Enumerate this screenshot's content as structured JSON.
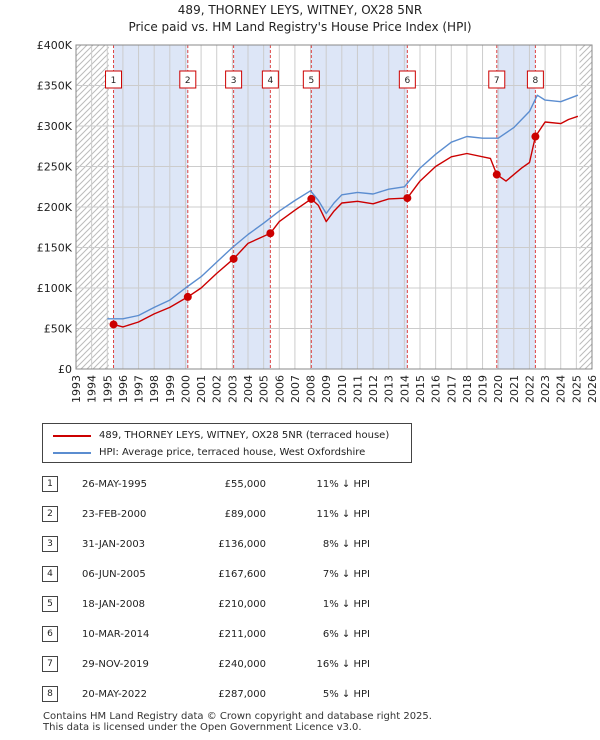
{
  "chart_data": {
    "type": "line",
    "title": "489, THORNEY LEYS, WITNEY, OX28 5NR",
    "subtitle": "Price paid vs. HM Land Registry's House Price Index (HPI)",
    "xlabel": "",
    "ylabel": "",
    "xlim": [
      1993,
      2026
    ],
    "ylim": [
      0,
      400000
    ],
    "y_ticks": [
      0,
      50000,
      100000,
      150000,
      200000,
      250000,
      300000,
      350000,
      400000
    ],
    "y_tick_labels": [
      "£0",
      "£50K",
      "£100K",
      "£150K",
      "£200K",
      "£250K",
      "£300K",
      "£350K",
      "£400K"
    ],
    "x_ticks": [
      1993,
      1994,
      1995,
      1996,
      1997,
      1998,
      1999,
      2000,
      2001,
      2002,
      2003,
      2004,
      2005,
      2006,
      2007,
      2008,
      2009,
      2010,
      2011,
      2012,
      2013,
      2014,
      2015,
      2016,
      2017,
      2018,
      2019,
      2020,
      2021,
      2022,
      2023,
      2024,
      2025,
      2026
    ],
    "hatched_regions": [
      [
        1993,
        1995.1
      ],
      [
        2025.2,
        2026
      ]
    ],
    "colors": {
      "property": "#cc0000",
      "hpi": "#5b8dd0",
      "shade": "#dde6f7",
      "grid": "#cccccc"
    },
    "series": [
      {
        "name": "489, THORNEY LEYS, WITNEY, OX28 5NR (terraced house)",
        "color": "#cc0000",
        "x": [
          1995.4,
          1996,
          1997,
          1998,
          1999,
          2000.15,
          2001,
          2002,
          2003.08,
          2004,
          2005.43,
          2006,
          2007,
          2008.05,
          2008.5,
          2009,
          2009.5,
          2010,
          2011,
          2012,
          2013,
          2014.19,
          2015,
          2016,
          2017,
          2018,
          2019.5,
          2019.91,
          2020.5,
          2021,
          2021.5,
          2022,
          2022.38,
          2023,
          2024,
          2024.5,
          2025.1
        ],
        "values": [
          55000,
          52000,
          58000,
          68000,
          76000,
          89000,
          100000,
          118000,
          136000,
          155000,
          167600,
          182000,
          196000,
          210000,
          202000,
          182000,
          195000,
          205000,
          207000,
          204000,
          210000,
          211000,
          232000,
          250000,
          262000,
          266000,
          260000,
          240000,
          232000,
          240000,
          248000,
          255000,
          287000,
          305000,
          303000,
          308000,
          312000
        ]
      },
      {
        "name": "HPI: Average price, terraced house, West Oxfordshire",
        "color": "#5b8dd0",
        "x": [
          1995,
          1996,
          1997,
          1998,
          1999,
          2000,
          2001,
          2002,
          2003,
          2004,
          2005,
          2006,
          2007,
          2008,
          2008.5,
          2009,
          2009.5,
          2010,
          2011,
          2012,
          2013,
          2014,
          2015,
          2016,
          2017,
          2018,
          2019,
          2020,
          2021,
          2022,
          2022.5,
          2023,
          2024,
          2025.1
        ],
        "values": [
          62000,
          62000,
          66000,
          76000,
          85000,
          100000,
          114000,
          132000,
          150000,
          166000,
          180000,
          195000,
          208000,
          220000,
          208000,
          192000,
          205000,
          215000,
          218000,
          216000,
          222000,
          225000,
          248000,
          265000,
          280000,
          287000,
          285000,
          285000,
          298000,
          318000,
          338000,
          332000,
          330000,
          338000
        ]
      }
    ],
    "sales_markers": [
      {
        "label": "1",
        "x": 1995.4,
        "value": 55000
      },
      {
        "label": "2",
        "x": 2000.15,
        "value": 89000
      },
      {
        "label": "3",
        "x": 2003.08,
        "value": 136000
      },
      {
        "label": "4",
        "x": 2005.43,
        "value": 167600
      },
      {
        "label": "5",
        "x": 2008.05,
        "value": 210000
      },
      {
        "label": "6",
        "x": 2014.19,
        "value": 211000
      },
      {
        "label": "7",
        "x": 2019.91,
        "value": 240000
      },
      {
        "label": "8",
        "x": 2022.38,
        "value": 287000
      }
    ]
  },
  "legend": {
    "property_label": "489, THORNEY LEYS, WITNEY, OX28 5NR (terraced house)",
    "hpi_label": "HPI: Average price, terraced house, West Oxfordshire"
  },
  "sales": [
    {
      "num": "1",
      "date": "26-MAY-1995",
      "price": "£55,000",
      "hpi": "11% ↓ HPI"
    },
    {
      "num": "2",
      "date": "23-FEB-2000",
      "price": "£89,000",
      "hpi": "11% ↓ HPI"
    },
    {
      "num": "3",
      "date": "31-JAN-2003",
      "price": "£136,000",
      "hpi": "8% ↓ HPI"
    },
    {
      "num": "4",
      "date": "06-JUN-2005",
      "price": "£167,600",
      "hpi": "7% ↓ HPI"
    },
    {
      "num": "5",
      "date": "18-JAN-2008",
      "price": "£210,000",
      "hpi": "1% ↓ HPI"
    },
    {
      "num": "6",
      "date": "10-MAR-2014",
      "price": "£211,000",
      "hpi": "6% ↓ HPI"
    },
    {
      "num": "7",
      "date": "29-NOV-2019",
      "price": "£240,000",
      "hpi": "16% ↓ HPI"
    },
    {
      "num": "8",
      "date": "20-MAY-2022",
      "price": "£287,000",
      "hpi": "5% ↓ HPI"
    }
  ],
  "footer": {
    "line1": "Contains HM Land Registry data © Crown copyright and database right 2025.",
    "line2": "This data is licensed under the Open Government Licence v3.0."
  }
}
